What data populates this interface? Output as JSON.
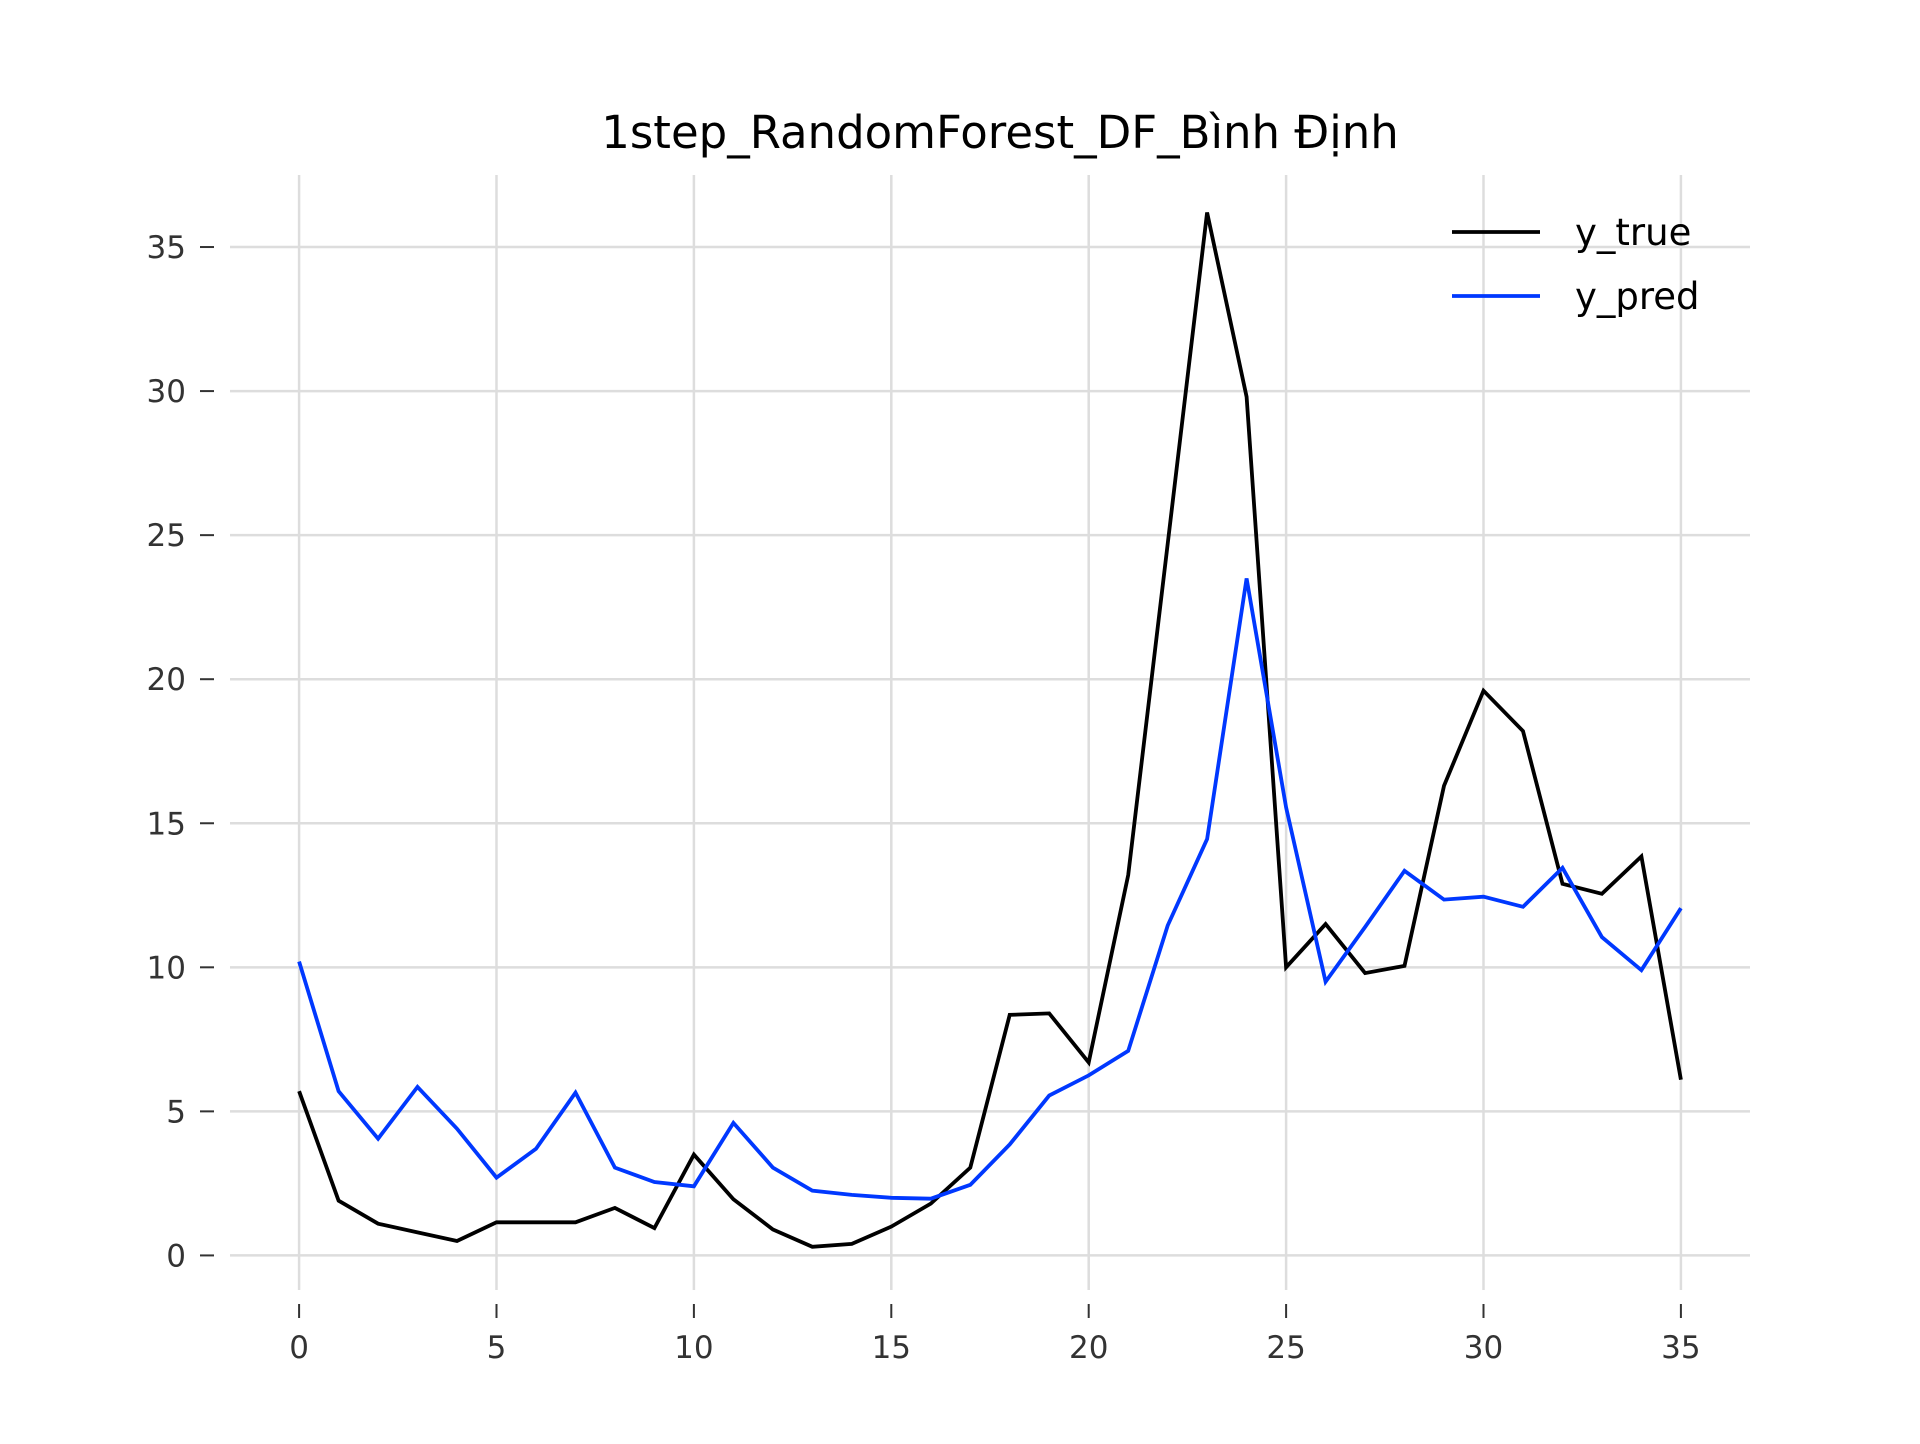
{
  "chart_data": {
    "type": "line",
    "title": "1step_RandomForest_DF_Bình Định",
    "xlabel": "",
    "ylabel": "",
    "xlim": [
      -1.75,
      36.75
    ],
    "ylim": [
      -1.2,
      37.5
    ],
    "x_ticks": [
      0,
      5,
      10,
      15,
      20,
      25,
      30,
      35
    ],
    "y_ticks": [
      0,
      5,
      10,
      15,
      20,
      25,
      30,
      35
    ],
    "grid": true,
    "legend_position": "top-right",
    "x": [
      0,
      1,
      2,
      3,
      4,
      5,
      6,
      7,
      8,
      9,
      10,
      11,
      12,
      13,
      14,
      15,
      16,
      17,
      18,
      19,
      20,
      21,
      22,
      23,
      24,
      25,
      26,
      27,
      28,
      29,
      30,
      31,
      32,
      33,
      34,
      35
    ],
    "series": [
      {
        "name": "y_true",
        "color": "#000000",
        "values": [
          5.7,
          1.9,
          1.1,
          0.8,
          0.5,
          1.15,
          1.15,
          1.15,
          1.65,
          0.95,
          3.5,
          1.95,
          0.9,
          0.3,
          0.4,
          1.0,
          1.8,
          3.05,
          8.35,
          8.4,
          6.7,
          13.2,
          24.7,
          36.2,
          29.8,
          10.0,
          11.5,
          9.8,
          10.05,
          16.3,
          19.6,
          18.2,
          12.9,
          12.55,
          13.85,
          6.1
        ]
      },
      {
        "name": "y_pred",
        "color": "#0038ff",
        "values": [
          10.2,
          5.7,
          4.05,
          5.85,
          4.4,
          2.7,
          3.7,
          5.65,
          3.05,
          2.55,
          2.4,
          4.6,
          3.05,
          2.25,
          2.1,
          2.0,
          1.97,
          2.45,
          3.85,
          5.55,
          6.25,
          7.1,
          11.45,
          14.45,
          23.5,
          15.55,
          9.5,
          11.4,
          13.35,
          12.35,
          12.45,
          12.1,
          13.45,
          11.05,
          9.9,
          12.05
        ]
      }
    ]
  }
}
